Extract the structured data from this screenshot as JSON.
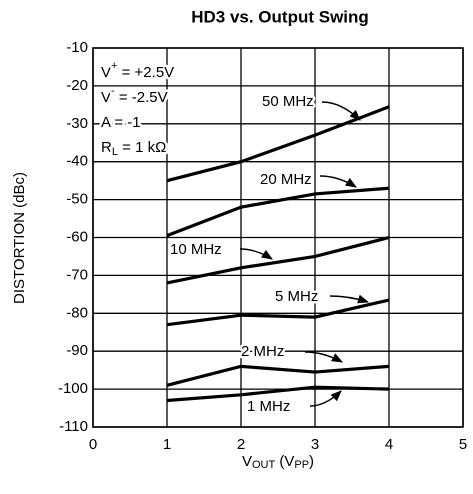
{
  "chart_data": {
    "type": "line",
    "title": "HD3 vs. Output Swing",
    "ylabel": "DISTORTION (dBc)",
    "xlabel": [
      "V",
      "OUT",
      " (V",
      "PP",
      ")"
    ],
    "annotations": [
      [
        "V",
        "+",
        " = +2.5V"
      ],
      [
        "V",
        "-",
        " = -2.5V"
      ],
      [
        "A = -1"
      ],
      [
        "R",
        "L",
        " = 1 kΩ"
      ]
    ],
    "x": [
      1,
      2,
      3,
      4
    ],
    "series": [
      {
        "name": "50 MHz",
        "color": "#000000",
        "values": [
          -45,
          -40,
          -33,
          -25.5
        ]
      },
      {
        "name": "20 MHz",
        "color": "#000000",
        "values": [
          -59.5,
          -52,
          -48.5,
          -47
        ]
      },
      {
        "name": "10 MHz",
        "color": "#000000",
        "values": [
          -72,
          -68,
          -65,
          -60
        ]
      },
      {
        "name": "5 MHz",
        "color": "#000000",
        "values": [
          -83,
          -80.5,
          -81,
          -76.5
        ]
      },
      {
        "name": "2 MHz",
        "color": "#000000",
        "values": [
          -99,
          -94,
          -95.5,
          -94
        ]
      },
      {
        "name": "1 MHz",
        "color": "#000000",
        "values": [
          -103,
          -101.5,
          -99.5,
          -100
        ]
      }
    ],
    "xlim": [
      0,
      5
    ],
    "xticks": [
      0,
      1,
      2,
      3,
      4,
      5
    ],
    "ylim": [
      -110,
      -10
    ],
    "yticks": [
      -10,
      -20,
      -30,
      -40,
      -50,
      -60,
      -70,
      -80,
      -90,
      -100,
      -110
    ],
    "grid": true
  }
}
